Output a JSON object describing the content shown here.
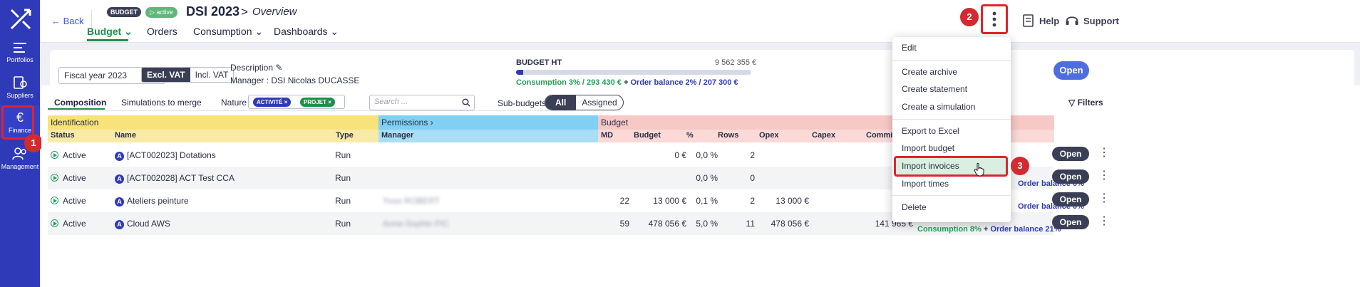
{
  "sidebar": {
    "items": [
      {
        "label": "Portfolios"
      },
      {
        "label": "Suppliers"
      },
      {
        "label": "Finance"
      },
      {
        "label": "Management"
      }
    ]
  },
  "header": {
    "back_label": "Back",
    "tag_budget": "BUDGET",
    "tag_active": "active",
    "title": "DSI 2023",
    "separator": ">",
    "subtitle": "Overview",
    "tabs": [
      {
        "label": "Budget"
      },
      {
        "label": "Orders"
      },
      {
        "label": "Consumption"
      },
      {
        "label": "Dashboards"
      }
    ],
    "help_label": "Help",
    "support_label": "Support"
  },
  "toolbar": {
    "fiscal_year": "Fiscal year 2023",
    "vat_excl": "Excl. VAT",
    "vat_incl": "Incl. VAT",
    "description_label": "Description",
    "manager": "Manager : DSI Nicolas DUCASSE",
    "budget_ht_label": "BUDGET HT",
    "budget_ht_value": "9 562 355 €",
    "consumption_text": "Consumption 3% / 293 430 €",
    "plus": " + ",
    "order_balance_text": "Order balance 2% / 207 300 €",
    "open_label": "Open",
    "consumption_progress_pct": 3
  },
  "panel": {
    "tabs": [
      {
        "label": "Composition"
      },
      {
        "label": "Simulations to merge"
      }
    ],
    "nature_label": "Nature",
    "chips": [
      {
        "label": "ACTIVITÉ",
        "color": "#2f3ab8"
      },
      {
        "label": "PROJET",
        "color": "#1f8f4a"
      }
    ],
    "search_placeholder": "Search ...",
    "subbudgets_label": "Sub-budgets",
    "seg_all": "All",
    "seg_assigned": "Assigned",
    "filters_label": "Filters"
  },
  "table": {
    "groups": {
      "identification": "Identification",
      "permissions": "Permissions",
      "budget": "Budget"
    },
    "headers": {
      "status": "Status",
      "name": "Name",
      "type": "Type",
      "manager": "Manager",
      "md": "MD",
      "budget": "Budget",
      "pct": "%",
      "rows": "Rows",
      "opex": "Opex",
      "capex": "Capex",
      "committed": "Committ"
    },
    "rows": [
      {
        "status": "Active",
        "name": "[ACT002023] Dotations",
        "type": "Run",
        "manager": "",
        "md": "",
        "budget": "0 €",
        "pct": "0,0 %",
        "rows": "2",
        "opex": "",
        "committed": ""
      },
      {
        "status": "Active",
        "name": "[ACT002028] ACT Test CCA",
        "type": "Run",
        "manager": "",
        "md": "",
        "budget": "",
        "pct": "0,0 %",
        "rows": "0",
        "opex": "",
        "committed": ""
      },
      {
        "status": "Active",
        "name": "Ateliers peinture",
        "type": "Run",
        "manager": "Yvon ROBERT",
        "md": "22",
        "budget": "13 000 €",
        "pct": "0,1 %",
        "rows": "2",
        "opex": "13 000 €",
        "committed": ""
      },
      {
        "status": "Active",
        "name": "Cloud AWS",
        "type": "Run",
        "manager": "Anne-Sophie PIC",
        "md": "59",
        "budget": "478 056 €",
        "pct": "5,0 %",
        "rows": "11",
        "opex": "478 056 €",
        "committed": "141 965 €"
      }
    ],
    "row_open_label": "Open",
    "peek_balance": "Order balance 0%",
    "peek_cons": "Consumption 8%",
    "peek_balance2": "Order balance 21%"
  },
  "menu": {
    "items": [
      {
        "label": "Edit"
      },
      {
        "label": "Create archive"
      },
      {
        "label": "Create statement"
      },
      {
        "label": "Create a simulation"
      },
      {
        "label": "Export to Excel"
      },
      {
        "label": "Import budget"
      },
      {
        "label": "Import invoices"
      },
      {
        "label": "Import times"
      },
      {
        "label": "Delete"
      }
    ]
  },
  "annotations": {
    "step1": "1",
    "step2": "2",
    "step3": "3"
  },
  "colors": {
    "brand": "#2f3ab8",
    "accent_green": "#1f8f4a",
    "highlight_red": "#e0242c",
    "ident_yellow": "#f8e27a",
    "perm_blue": "#7fd0f2",
    "budget_pink": "#f7c9c6"
  }
}
